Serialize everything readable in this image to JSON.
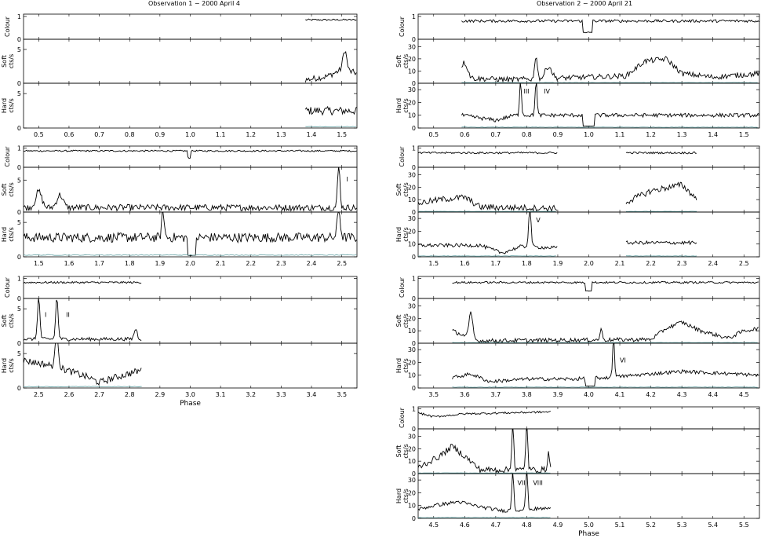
{
  "figure": {
    "title_left": "Observation 1 − 2000 April 4",
    "title_right": "Observation 2 − 2000 April 21",
    "xlabel": "Phase",
    "line_color": "#000000",
    "background_color": "#5f9ea0"
  },
  "chart_data": [
    {
      "type": "line",
      "observation": "Observation 1 − 2000 April 4",
      "xlim": [
        0.45,
        1.55
      ],
      "xticks": [
        0.5,
        0.6,
        0.7,
        0.8,
        0.9,
        1.0,
        1.1,
        1.2,
        1.3,
        1.4,
        1.5
      ],
      "xlabel": "",
      "panels": [
        {
          "ylabel": "Colour",
          "ylim": [
            0,
            1.1
          ],
          "yticks": [
            0,
            1
          ],
          "data_range": [
            1.38,
            1.55
          ],
          "level": 0.85,
          "noise": 0.04
        },
        {
          "ylabel": "Soft cts/s",
          "ylim": [
            0,
            6.5
          ],
          "yticks": [
            0,
            5
          ],
          "data_range": [
            1.38,
            1.55
          ],
          "level": 0.8,
          "noise": 0.45,
          "trend": [
            [
              1.38,
              0.5
            ],
            [
              1.45,
              1.0
            ],
            [
              1.5,
              2.0
            ],
            [
              1.55,
              1.5
            ]
          ],
          "flares": [
            [
              1.51,
              3.0,
              0.006
            ]
          ]
        },
        {
          "ylabel": "Hard cts/s",
          "ylim": [
            0,
            6.5
          ],
          "yticks": [
            0,
            5
          ],
          "data_range": [
            1.38,
            1.55
          ],
          "level": 2.5,
          "noise": 0.6,
          "bg": 0.15
        }
      ]
    },
    {
      "type": "line",
      "observation": "Observation 1 − 2000 April 4",
      "xlim": [
        1.45,
        2.55
      ],
      "xticks": [
        1.5,
        1.6,
        1.7,
        1.8,
        1.9,
        2.0,
        2.1,
        2.2,
        2.3,
        2.4,
        2.5
      ],
      "xlabel": "",
      "panels": [
        {
          "ylabel": "Colour",
          "ylim": [
            0,
            1.1
          ],
          "yticks": [
            0,
            1
          ],
          "data_range": [
            1.45,
            2.55
          ],
          "level": 0.85,
          "noise": 0.04,
          "dips": [
            [
              1.99,
              2.0,
              0.5
            ]
          ]
        },
        {
          "ylabel": "Soft cts/s",
          "ylim": [
            0,
            7
          ],
          "yticks": [
            0,
            5
          ],
          "data_range": [
            1.45,
            2.55
          ],
          "level": 0.7,
          "noise": 0.5,
          "flares": [
            [
              1.5,
              2.5,
              0.01
            ],
            [
              1.57,
              2.0,
              0.01
            ],
            [
              2.49,
              6.5,
              0.004
            ]
          ],
          "labels": [
            [
              2.515,
              4.8,
              "I"
            ]
          ]
        },
        {
          "ylabel": "Hard cts/s",
          "ylim": [
            0,
            6.5
          ],
          "yticks": [
            0,
            5
          ],
          "data_range": [
            1.45,
            2.55
          ],
          "level": 2.8,
          "noise": 0.7,
          "dips": [
            [
              1.99,
              2.02,
              0.2
            ]
          ],
          "flares": [
            [
              1.91,
              4.0,
              0.004
            ],
            [
              2.49,
              4.0,
              0.005
            ]
          ],
          "bg": 0.2
        }
      ]
    },
    {
      "type": "line",
      "observation": "Observation 1 − 2000 April 4",
      "xlim": [
        2.45,
        3.55
      ],
      "xticks": [
        2.5,
        2.6,
        2.7,
        2.8,
        2.9,
        3.0,
        3.1,
        3.2,
        3.3,
        3.4,
        3.5
      ],
      "xlabel": "Phase",
      "panels": [
        {
          "ylabel": "Colour",
          "ylim": [
            0,
            1.1
          ],
          "yticks": [
            0,
            1
          ],
          "data_range": [
            2.45,
            2.84
          ],
          "level": 0.8,
          "noise": 0.05
        },
        {
          "ylabel": "Soft cts/s",
          "ylim": [
            0,
            6.5
          ],
          "yticks": [
            0,
            5
          ],
          "data_range": [
            2.45,
            2.84
          ],
          "level": 0.6,
          "noise": 0.25,
          "flares": [
            [
              2.5,
              6.0,
              0.004
            ],
            [
              2.56,
              6.0,
              0.004
            ],
            [
              2.82,
              1.5,
              0.005
            ]
          ],
          "labels": [
            [
              2.52,
              3.8,
              "I"
            ],
            [
              2.59,
              3.8,
              "II"
            ]
          ]
        },
        {
          "ylabel": "Hard cts/s",
          "ylim": [
            0,
            6.5
          ],
          "yticks": [
            0,
            5
          ],
          "data_range": [
            2.45,
            2.84
          ],
          "level": 2.6,
          "noise": 0.5,
          "trend": [
            [
              2.45,
              4.0
            ],
            [
              2.55,
              3.2
            ],
            [
              2.66,
              1.6
            ],
            [
              2.7,
              0.8
            ],
            [
              2.75,
              1.5
            ],
            [
              2.84,
              2.6
            ]
          ],
          "flares": [
            [
              2.56,
              5.0,
              0.005
            ]
          ],
          "bg": 0.15
        }
      ]
    },
    {
      "type": "line",
      "observation": "Observation 2 − 2000 April 21",
      "xlim": [
        0.45,
        1.55
      ],
      "xticks": [
        0.5,
        0.6,
        0.7,
        0.8,
        0.9,
        1.0,
        1.1,
        1.2,
        1.3,
        1.4,
        1.5
      ],
      "xlabel": "",
      "panels": [
        {
          "ylabel": "Colour",
          "ylim": [
            0,
            1.1
          ],
          "yticks": [
            0,
            1
          ],
          "data_range": [
            0.59,
            1.55
          ],
          "level": 0.8,
          "noise": 0.06,
          "dips": [
            [
              0.98,
              1.01,
              0.3
            ]
          ]
        },
        {
          "ylabel": "Soft cts/s",
          "ylim": [
            0,
            36
          ],
          "yticks": [
            0,
            10,
            20,
            30
          ],
          "data_range": [
            0.59,
            1.55
          ],
          "level": 3,
          "noise": 2.2,
          "trend": [
            [
              0.59,
              8
            ],
            [
              0.62,
              4
            ],
            [
              0.75,
              3
            ],
            [
              1.12,
              6
            ],
            [
              1.18,
              18
            ],
            [
              1.25,
              20
            ],
            [
              1.3,
              8
            ],
            [
              1.4,
              5
            ],
            [
              1.55,
              8
            ]
          ],
          "flares": [
            [
              0.6,
              10,
              0.01
            ],
            [
              0.83,
              20,
              0.004
            ],
            [
              0.87,
              10,
              0.01
            ]
          ],
          "bg": 0.4
        },
        {
          "ylabel": "Hard cts/s",
          "ylim": [
            0,
            35
          ],
          "yticks": [
            0,
            10,
            20,
            30
          ],
          "data_range": [
            0.59,
            1.55
          ],
          "level": 9,
          "noise": 1.5,
          "trend": [
            [
              0.59,
              10
            ],
            [
              0.7,
              6
            ],
            [
              0.76,
              10
            ],
            [
              1.55,
              10
            ]
          ],
          "dips": [
            [
              0.98,
              1.02,
              1.5
            ]
          ],
          "flares": [
            [
              0.78,
              28,
              0.003
            ],
            [
              0.83,
              28,
              0.003
            ]
          ],
          "labels": [
            [
              0.79,
              27,
              "III"
            ],
            [
              0.855,
              27,
              "IV"
            ]
          ],
          "bg": 0.5
        }
      ]
    },
    {
      "type": "line",
      "observation": "Observation 2 − 2000 April 21",
      "xlim": [
        1.45,
        2.55
      ],
      "xticks": [
        1.5,
        1.6,
        1.7,
        1.8,
        1.9,
        2.0,
        2.1,
        2.2,
        2.3,
        2.4,
        2.5
      ],
      "xlabel": "",
      "panels": [
        {
          "ylabel": "Colour",
          "ylim": [
            0,
            1.1
          ],
          "yticks": [
            0,
            1
          ],
          "data_range": [
            1.45,
            1.9
          ],
          "extra_range": [
            2.12,
            2.35
          ],
          "level": 0.75,
          "noise": 0.05
        },
        {
          "ylabel": "Soft cts/s",
          "ylim": [
            0,
            36
          ],
          "yticks": [
            0,
            10,
            20,
            30
          ],
          "data_range": [
            1.45,
            1.9
          ],
          "extra_range": [
            2.12,
            2.35
          ],
          "level": 3,
          "noise": 2.5,
          "trend": [
            [
              1.45,
              7
            ],
            [
              1.52,
              10
            ],
            [
              1.6,
              12
            ],
            [
              1.65,
              4
            ],
            [
              1.9,
              3
            ],
            [
              2.12,
              8
            ],
            [
              2.2,
              17
            ],
            [
              2.3,
              22
            ],
            [
              2.35,
              10
            ]
          ],
          "bg": 0.4
        },
        {
          "ylabel": "Hard cts/s",
          "ylim": [
            0,
            35
          ],
          "yticks": [
            0,
            10,
            20,
            30
          ],
          "data_range": [
            1.45,
            1.9
          ],
          "extra_range": [
            2.12,
            2.35
          ],
          "level": 9,
          "noise": 1.4,
          "trend": [
            [
              1.45,
              9
            ],
            [
              1.65,
              9
            ],
            [
              1.72,
              3
            ],
            [
              1.78,
              8
            ],
            [
              1.9,
              7
            ],
            [
              2.12,
              11
            ],
            [
              2.35,
              11
            ]
          ],
          "flares": [
            [
              1.81,
              30,
              0.004
            ]
          ],
          "labels": [
            [
              1.83,
              27,
              "V"
            ]
          ],
          "bg": 0.5
        }
      ]
    },
    {
      "type": "line",
      "observation": "Observation 2 − 2000 April 21",
      "xlim": [
        3.45,
        4.55
      ],
      "xticks": [
        3.5,
        3.6,
        3.7,
        3.8,
        3.9,
        4.0,
        4.1,
        4.2,
        4.3,
        4.4,
        4.5
      ],
      "xlabel": "",
      "panels": [
        {
          "ylabel": "Colour",
          "ylim": [
            0,
            1.1
          ],
          "yticks": [
            0,
            1
          ],
          "data_range": [
            3.56,
            4.55
          ],
          "level": 0.8,
          "noise": 0.05,
          "dips": [
            [
              3.99,
              4.01,
              0.4
            ]
          ]
        },
        {
          "ylabel": "Soft cts/s",
          "ylim": [
            0,
            36
          ],
          "yticks": [
            0,
            10,
            20,
            30
          ],
          "data_range": [
            3.56,
            4.55
          ],
          "level": 2,
          "noise": 1.6,
          "trend": [
            [
              3.56,
              10
            ],
            [
              3.6,
              6
            ],
            [
              3.64,
              2
            ],
            [
              4.2,
              3
            ],
            [
              4.25,
              12
            ],
            [
              4.3,
              17
            ],
            [
              4.36,
              10
            ],
            [
              4.45,
              4
            ],
            [
              4.5,
              10
            ],
            [
              4.55,
              12
            ]
          ],
          "flares": [
            [
              3.62,
              20,
              0.006
            ],
            [
              4.04,
              8,
              0.004
            ]
          ],
          "bg": 0.4
        },
        {
          "ylabel": "Hard cts/s",
          "ylim": [
            0,
            35
          ],
          "yticks": [
            0,
            10,
            20,
            30
          ],
          "data_range": [
            3.56,
            4.55
          ],
          "level": 8,
          "noise": 1.4,
          "trend": [
            [
              3.56,
              8
            ],
            [
              3.62,
              11
            ],
            [
              3.68,
              5
            ],
            [
              3.8,
              7
            ],
            [
              3.95,
              7
            ],
            [
              4.05,
              8
            ],
            [
              4.2,
              11
            ],
            [
              4.3,
              13
            ],
            [
              4.55,
              10
            ]
          ],
          "dips": [
            [
              3.99,
              4.02,
              1.5
            ]
          ],
          "flares": [
            [
              4.08,
              32,
              0.003
            ]
          ],
          "labels": [
            [
              4.1,
              20,
              "VI"
            ]
          ],
          "bg": 0.5
        }
      ]
    },
    {
      "type": "line",
      "observation": "Observation 2 − 2000 April 21",
      "xlim": [
        4.45,
        5.55
      ],
      "xticks": [
        4.5,
        4.6,
        4.7,
        4.8,
        4.9,
        5.0,
        5.1,
        5.2,
        5.3,
        5.4,
        5.5
      ],
      "xlabel": "Phase",
      "panels": [
        {
          "ylabel": "Colour",
          "ylim": [
            0,
            1.1
          ],
          "yticks": [
            0,
            1
          ],
          "data_range": [
            4.45,
            4.88
          ],
          "level": 0.8,
          "noise": 0.05,
          "trend": [
            [
              4.45,
              0.8
            ],
            [
              4.5,
              0.6
            ],
            [
              4.6,
              0.75
            ],
            [
              4.88,
              0.85
            ]
          ]
        },
        {
          "ylabel": "Soft cts/s",
          "ylim": [
            0,
            36
          ],
          "yticks": [
            0,
            10,
            20,
            30
          ],
          "data_range": [
            4.45,
            4.88
          ],
          "level": 3,
          "noise": 2.5,
          "trend": [
            [
              4.45,
              5
            ],
            [
              4.52,
              14
            ],
            [
              4.56,
              22
            ],
            [
              4.6,
              14
            ],
            [
              4.65,
              3
            ],
            [
              4.88,
              3
            ]
          ],
          "flares": [
            [
              4.755,
              40,
              0.003
            ],
            [
              4.8,
              40,
              0.003
            ],
            [
              4.87,
              15,
              0.003
            ]
          ],
          "bg": 0.4
        },
        {
          "ylabel": "Hard cts/s",
          "ylim": [
            0,
            35
          ],
          "yticks": [
            0,
            10,
            20,
            30
          ],
          "data_range": [
            4.45,
            4.88
          ],
          "level": 8,
          "noise": 1.4,
          "trend": [
            [
              4.45,
              7
            ],
            [
              4.5,
              10
            ],
            [
              4.58,
              13
            ],
            [
              4.65,
              9
            ],
            [
              4.72,
              6
            ],
            [
              4.88,
              8
            ]
          ],
          "flares": [
            [
              4.755,
              32,
              0.003
            ],
            [
              4.8,
              32,
              0.003
            ]
          ],
          "labels": [
            [
              4.77,
              26,
              "VII"
            ],
            [
              4.82,
              26,
              "VIII"
            ]
          ],
          "bg": 0.5
        }
      ]
    }
  ]
}
